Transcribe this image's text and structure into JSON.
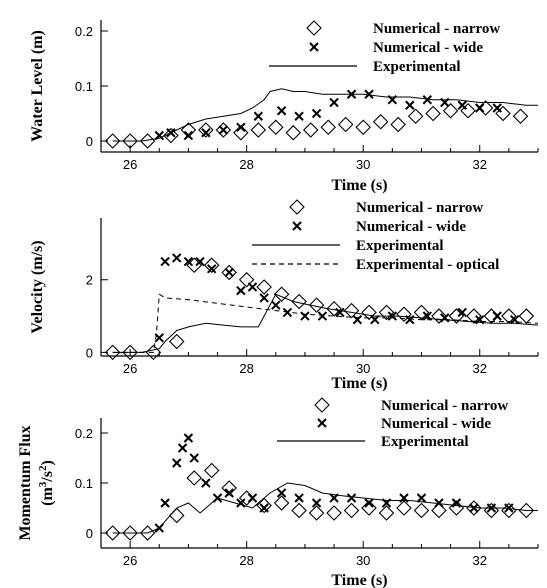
{
  "chart_data": [
    {
      "type": "line",
      "xlabel": "Time (s)",
      "ylabel": "Water Level (m)",
      "xlim": [
        25.5,
        33
      ],
      "ylim": [
        -0.02,
        0.22
      ],
      "xticks": [
        26,
        28,
        30,
        32
      ],
      "yticks": [
        0,
        0.1,
        0.2
      ],
      "ytick_labels": [
        "0",
        "0.1",
        "0.2"
      ],
      "grid": false,
      "legend_position": "top-right",
      "series": [
        {
          "name": "Numerical - narrow",
          "marker": "diamond",
          "x": [
            25.7,
            26.0,
            26.3,
            26.7,
            27.0,
            27.3,
            27.6,
            27.9,
            28.2,
            28.5,
            28.8,
            29.1,
            29.4,
            29.7,
            30.0,
            30.3,
            30.6,
            30.9,
            31.2,
            31.5,
            31.8,
            32.1,
            32.4,
            32.7
          ],
          "y": [
            0.0,
            0.0,
            0.0,
            0.01,
            0.02,
            0.02,
            0.02,
            0.015,
            0.02,
            0.025,
            0.015,
            0.02,
            0.025,
            0.03,
            0.025,
            0.035,
            0.03,
            0.045,
            0.05,
            0.055,
            0.055,
            0.06,
            0.05,
            0.045
          ]
        },
        {
          "name": "Numerical - wide",
          "marker": "x",
          "x": [
            26.5,
            26.7,
            27.0,
            27.3,
            27.6,
            27.9,
            28.2,
            28.6,
            28.9,
            29.2,
            29.5,
            29.8,
            30.1,
            30.5,
            30.8,
            31.1,
            31.4,
            31.7,
            32.0,
            32.3
          ],
          "y": [
            0.01,
            0.015,
            0.01,
            0.015,
            0.02,
            0.025,
            0.045,
            0.055,
            0.045,
            0.05,
            0.07,
            0.085,
            0.085,
            0.075,
            0.065,
            0.075,
            0.07,
            0.065,
            0.06,
            0.06
          ]
        },
        {
          "name": "Experimental",
          "marker": "line",
          "x": [
            25.7,
            26.2,
            26.5,
            26.8,
            27.0,
            27.3,
            27.6,
            27.9,
            28.1,
            28.3,
            28.4,
            28.6,
            28.8,
            29.0,
            29.3,
            29.6,
            30.0,
            30.4,
            30.8,
            31.2,
            31.6,
            32.0,
            32.4,
            32.8,
            33.0
          ],
          "y": [
            0.0,
            0.0,
            0.005,
            0.02,
            0.03,
            0.04,
            0.045,
            0.05,
            0.06,
            0.075,
            0.09,
            0.095,
            0.09,
            0.09,
            0.085,
            0.085,
            0.085,
            0.08,
            0.08,
            0.075,
            0.075,
            0.07,
            0.07,
            0.065,
            0.065
          ]
        }
      ]
    },
    {
      "type": "line",
      "xlabel": "Time (s)",
      "ylabel": "Velocity (m/s)",
      "xlim": [
        25.5,
        33
      ],
      "ylim": [
        -0.1,
        3.7
      ],
      "xticks": [
        26,
        28,
        30,
        32
      ],
      "yticks": [
        0,
        2
      ],
      "ytick_labels": [
        "0",
        "2"
      ],
      "grid": false,
      "legend_position": "top-right",
      "series": [
        {
          "name": "Numerical - narrow",
          "marker": "diamond",
          "x": [
            25.7,
            26.0,
            26.4,
            26.8,
            27.1,
            27.4,
            27.7,
            28.0,
            28.3,
            28.6,
            28.9,
            29.2,
            29.5,
            29.8,
            30.1,
            30.4,
            30.7,
            31.0,
            31.3,
            31.6,
            31.9,
            32.2,
            32.5,
            32.8
          ],
          "y": [
            0.0,
            0.0,
            0.0,
            0.3,
            2.4,
            2.4,
            2.2,
            2.0,
            1.8,
            1.6,
            1.4,
            1.3,
            1.2,
            1.15,
            1.1,
            1.1,
            1.05,
            1.1,
            1.0,
            1.0,
            1.0,
            1.0,
            1.0,
            1.0
          ]
        },
        {
          "name": "Numerical - wide",
          "marker": "x",
          "x": [
            26.5,
            26.6,
            26.8,
            27.0,
            27.2,
            27.4,
            27.7,
            27.9,
            28.1,
            28.3,
            28.5,
            28.7,
            29.0,
            29.3,
            29.6,
            29.9,
            30.2,
            30.5,
            30.8,
            31.1,
            31.4,
            31.7,
            32.0,
            32.3,
            32.6
          ],
          "y": [
            0.4,
            2.5,
            2.6,
            2.5,
            2.5,
            2.3,
            2.2,
            1.7,
            1.8,
            1.5,
            1.3,
            1.1,
            1.0,
            1.0,
            1.1,
            0.9,
            0.9,
            1.0,
            0.9,
            1.0,
            0.95,
            1.1,
            0.9,
            1.0,
            0.9
          ]
        },
        {
          "name": "Experimental",
          "marker": "line",
          "x": [
            25.7,
            26.2,
            26.5,
            26.6,
            26.8,
            27.0,
            27.3,
            27.6,
            27.9,
            28.2,
            28.5,
            28.8,
            29.1,
            29.4,
            29.8,
            30.2,
            30.6,
            31.0,
            31.4,
            31.8,
            32.2,
            32.6,
            33.0
          ],
          "y": [
            0.0,
            0.0,
            0.1,
            0.3,
            0.6,
            0.7,
            0.8,
            0.75,
            0.7,
            0.7,
            1.6,
            1.4,
            1.3,
            1.2,
            1.1,
            1.0,
            1.0,
            0.95,
            0.9,
            0.85,
            0.8,
            0.8,
            0.75
          ]
        },
        {
          "name": "Experimental - optical",
          "marker": "dashed",
          "x": [
            25.7,
            26.4,
            26.45,
            26.5,
            26.6,
            27.0,
            27.5,
            28.0,
            28.5,
            29.0,
            29.5,
            30.0,
            30.5,
            31.0,
            31.5,
            32.0,
            32.5,
            33.0
          ],
          "y": [
            0.0,
            0.0,
            0.5,
            1.6,
            1.5,
            1.45,
            1.35,
            1.25,
            1.15,
            1.05,
            1.0,
            0.95,
            0.95,
            0.9,
            0.9,
            0.85,
            0.85,
            0.8
          ]
        }
      ]
    },
    {
      "type": "line",
      "xlabel": "Time (s)",
      "ylabel": "Momentum Flux (m3/s2)",
      "xlim": [
        25.5,
        33
      ],
      "ylim": [
        -0.03,
        0.23
      ],
      "xticks": [
        26,
        28,
        30,
        32
      ],
      "yticks": [
        0,
        0.1,
        0.2
      ],
      "ytick_labels": [
        "0",
        "0.1",
        "0.2"
      ],
      "grid": false,
      "legend_position": "top-right",
      "series": [
        {
          "name": "Numerical - narrow",
          "marker": "diamond",
          "x": [
            25.7,
            26.0,
            26.3,
            26.8,
            27.1,
            27.4,
            27.7,
            28.0,
            28.3,
            28.6,
            28.9,
            29.2,
            29.5,
            29.8,
            30.1,
            30.4,
            30.7,
            31.0,
            31.3,
            31.6,
            31.9,
            32.2,
            32.5,
            32.8
          ],
          "y": [
            0.0,
            0.0,
            0.0,
            0.035,
            0.11,
            0.125,
            0.09,
            0.07,
            0.055,
            0.06,
            0.045,
            0.04,
            0.04,
            0.045,
            0.05,
            0.04,
            0.05,
            0.045,
            0.045,
            0.05,
            0.05,
            0.045,
            0.045,
            0.045
          ]
        },
        {
          "name": "Numerical - wide",
          "marker": "x",
          "x": [
            26.5,
            26.6,
            26.8,
            26.9,
            27.0,
            27.1,
            27.3,
            27.5,
            27.7,
            27.9,
            28.1,
            28.3,
            28.6,
            28.9,
            29.2,
            29.5,
            29.8,
            30.1,
            30.4,
            30.7,
            31.0,
            31.3,
            31.6,
            31.9,
            32.2,
            32.5
          ],
          "y": [
            0.01,
            0.06,
            0.14,
            0.17,
            0.19,
            0.15,
            0.1,
            0.07,
            0.08,
            0.06,
            0.07,
            0.05,
            0.08,
            0.07,
            0.06,
            0.07,
            0.07,
            0.06,
            0.06,
            0.07,
            0.07,
            0.06,
            0.06,
            0.05,
            0.05,
            0.05
          ]
        },
        {
          "name": "Experimental",
          "marker": "line",
          "x": [
            25.7,
            26.3,
            26.5,
            26.8,
            27.0,
            27.2,
            27.5,
            27.8,
            28.1,
            28.4,
            28.7,
            29.0,
            29.3,
            29.6,
            30.0,
            30.4,
            30.8,
            31.2,
            31.6,
            32.0,
            32.4,
            32.8,
            33.0
          ],
          "y": [
            0.0,
            0.0,
            0.01,
            0.05,
            0.06,
            0.04,
            0.07,
            0.06,
            0.05,
            0.08,
            0.1,
            0.095,
            0.08,
            0.075,
            0.07,
            0.065,
            0.065,
            0.06,
            0.055,
            0.05,
            0.05,
            0.045,
            0.045
          ]
        }
      ]
    }
  ]
}
